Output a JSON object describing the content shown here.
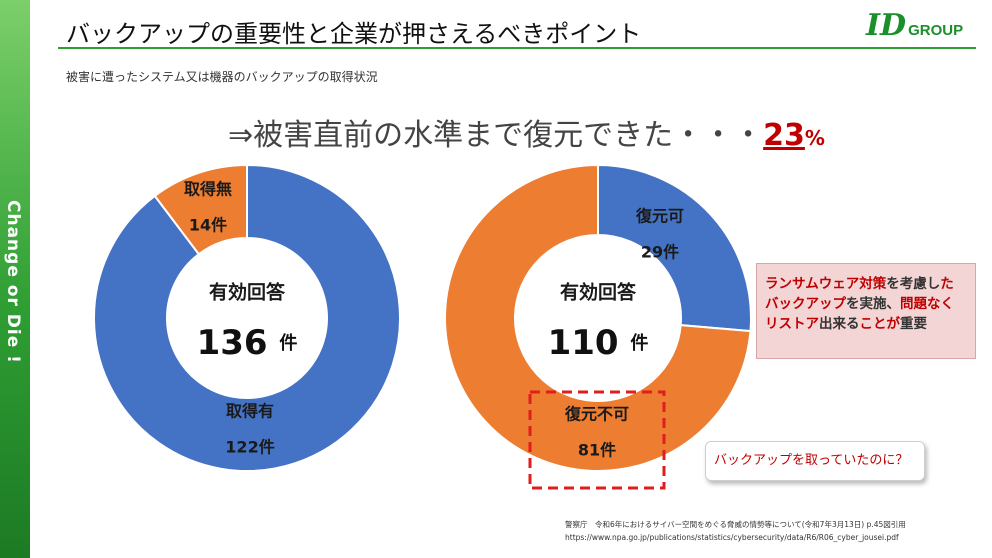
{
  "sidebar": {
    "text": "Change or Die !"
  },
  "header": {
    "title": "バックアップの重要性と企業が押さえるべきポイント",
    "logo_id": "ID",
    "logo_group": "GROUP"
  },
  "subtitle": "被害に遭ったシステム又は機器のバックアップの取得状況",
  "headline": {
    "text": "⇒被害直前の水準まで復元できた・・・",
    "value": "23",
    "unit": "%"
  },
  "chart_data": [
    {
      "type": "pie",
      "variant": "donut",
      "title": "有効回答 136 件",
      "center_label": "有効回答",
      "total": "136",
      "total_unit": "件",
      "categories": [
        "取得有",
        "取得無"
      ],
      "values": [
        122,
        14
      ],
      "value_labels": [
        "122件",
        "14件"
      ],
      "colors": [
        "#4472c4",
        "#ed7d31"
      ]
    },
    {
      "type": "pie",
      "variant": "donut",
      "title": "有効回答 110 件",
      "center_label": "有効回答",
      "total": "110",
      "total_unit": "件",
      "categories": [
        "復元可",
        "復元不可"
      ],
      "values": [
        29,
        81
      ],
      "value_labels": [
        "29件",
        "81件"
      ],
      "colors": [
        "#4472c4",
        "#ed7d31"
      ]
    }
  ],
  "note_box": {
    "parts": [
      {
        "text": "ランサムウェア対策",
        "emph": true
      },
      {
        "text": "を考慮し",
        "emph": false
      },
      {
        "text": "たバックアップ",
        "emph": true
      },
      {
        "text": "を実施、",
        "emph": false
      },
      {
        "text": "問題なくリストア",
        "emph": true
      },
      {
        "text": "出来る",
        "emph": false
      },
      {
        "text": "ことが",
        "emph": true
      },
      {
        "text": "重要",
        "emph": false
      }
    ]
  },
  "callout": {
    "text": "バックアップを取っていたのに？"
  },
  "source": {
    "line1": "警察庁　令和6年におけるサイバー空間をめぐる脅威の情勢等について(令和7年3月13日) p.45図引用",
    "line2": "https://www.npa.go.jp/publications/statistics/cybersecurity/data/R6/R06_cyber_jousei.pdf"
  },
  "colors": {
    "blue": "#4472c4",
    "orange": "#ed7d31",
    "accent_red": "#c00000",
    "brand_green": "#2e9e33"
  }
}
